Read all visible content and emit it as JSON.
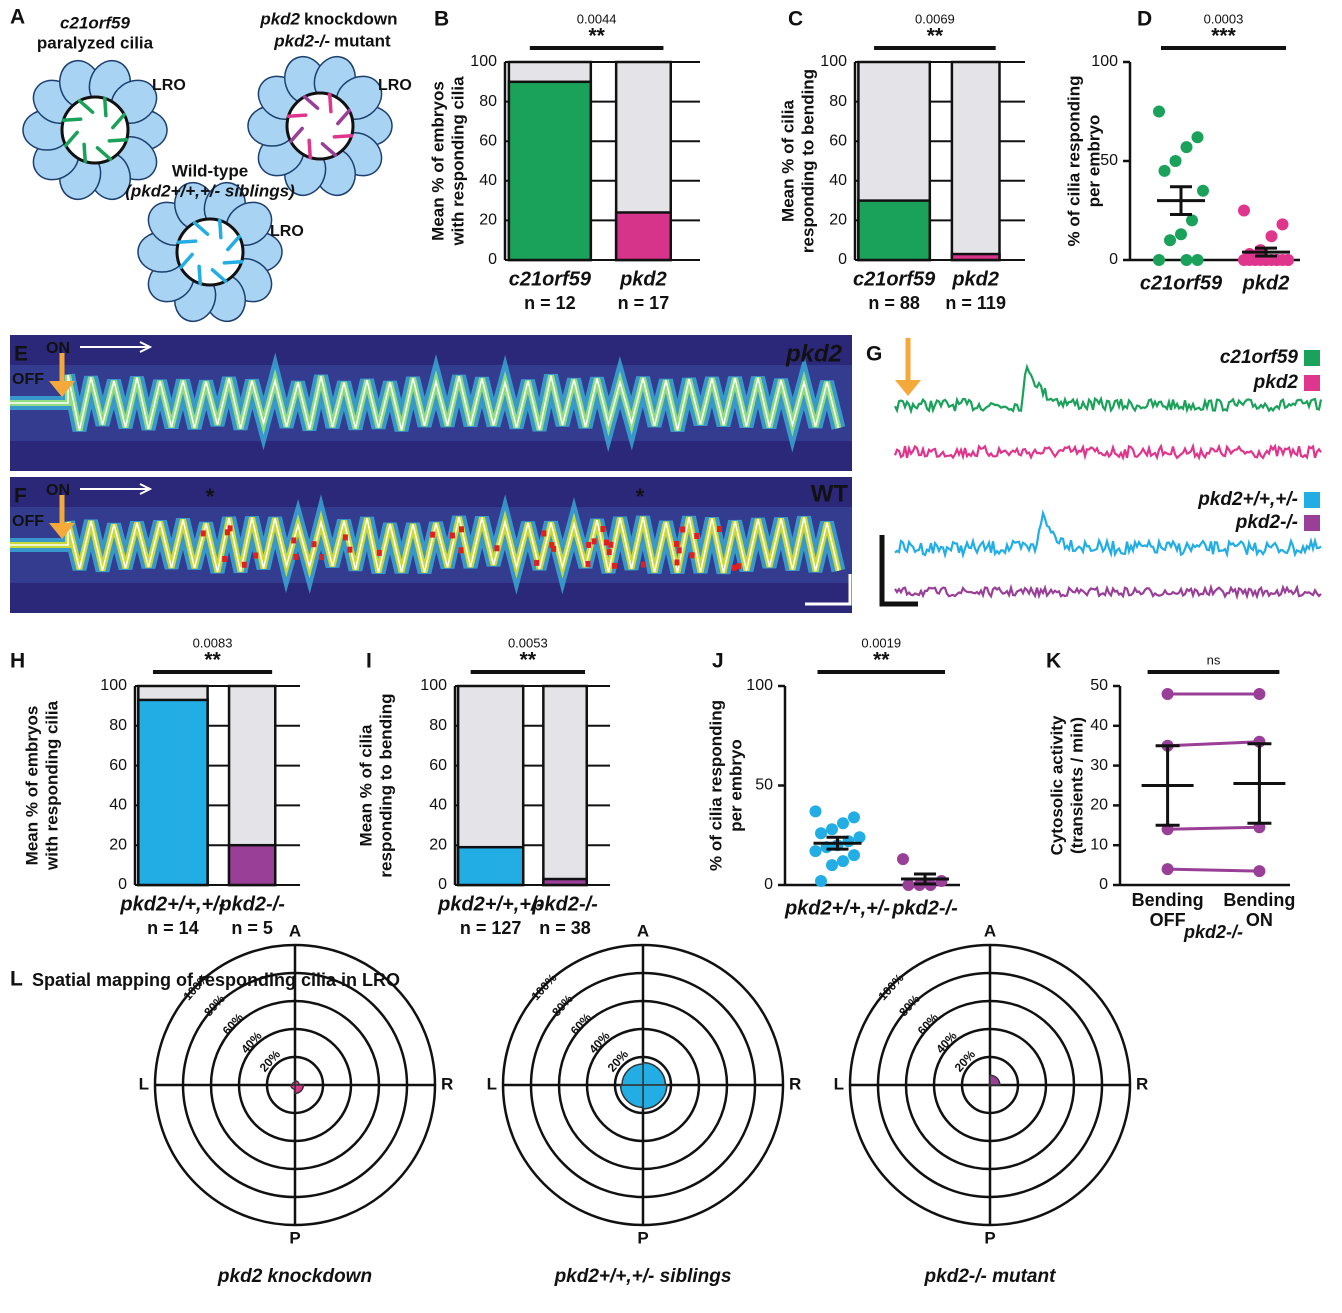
{
  "panel_a": {
    "label": "A",
    "c21_name": "c21orf59",
    "c21_desc": "paralyzed cilia",
    "kd_name": "pkd2",
    "kd_desc": "knockdown",
    "mut_name": "pkd2-/-",
    "mut_desc": "mutant",
    "wt_title": "Wild-type",
    "wt_desc": "(pkd2+/+,+/- siblings)",
    "lro": "LRO"
  },
  "panel_e": {
    "label": "E",
    "on": "ON",
    "off": "OFF",
    "tag": "pkd2"
  },
  "panel_f": {
    "label": "F",
    "on": "ON",
    "off": "OFF",
    "tag": "WT",
    "marker": "*"
  },
  "panel_g": {
    "label": "G",
    "legend": [
      {
        "name": "c21orf59",
        "color": "#1aa15a"
      },
      {
        "name": "pkd2",
        "color": "#e0358c"
      },
      {
        "name": "pkd2+/+,+/-",
        "color": "#22aee5"
      },
      {
        "name": "pkd2-/-",
        "color": "#9a3f98"
      }
    ]
  },
  "panel_l": {
    "label": "L",
    "title": "Spatial mapping of responding cilia in LRO"
  },
  "chart_data": [
    {
      "panel": "B",
      "type": "bar",
      "ylabel": [
        "Mean % of embryos",
        "with responding cilia"
      ],
      "categories": [
        "c21orf59",
        "pkd2"
      ],
      "values": [
        90,
        24
      ],
      "colors": [
        "#1aa15a",
        "#d6338a"
      ],
      "background": "#e4e4e8",
      "n_labels": [
        "n = 12",
        "n = 17"
      ],
      "ylim": [
        0,
        100
      ],
      "yticks": [
        0,
        20,
        40,
        60,
        80,
        100
      ],
      "p_value": "0.0044",
      "significance": "**"
    },
    {
      "panel": "C",
      "type": "bar",
      "ylabel": [
        "Mean % of cilia",
        "responding to bending"
      ],
      "categories": [
        "c21orf59",
        "pkd2"
      ],
      "values": [
        30,
        3
      ],
      "colors": [
        "#1aa15a",
        "#d6338a"
      ],
      "background": "#e4e4e8",
      "n_labels": [
        "n = 88",
        "n = 119"
      ],
      "ylim": [
        0,
        100
      ],
      "yticks": [
        0,
        20,
        40,
        60,
        80,
        100
      ],
      "p_value": "0.0069",
      "significance": "**"
    },
    {
      "panel": "D",
      "type": "dot",
      "ylabel": [
        "% of cilia responding",
        "per embryo"
      ],
      "categories": [
        "c21orf59",
        "pkd2"
      ],
      "colors": [
        "#1aa15a",
        "#e0358c"
      ],
      "points": [
        [
          75,
          62,
          57,
          50,
          45,
          35,
          20,
          13,
          10,
          0,
          0,
          0
        ],
        [
          25,
          18,
          12,
          5,
          3,
          0,
          0,
          0,
          0,
          0,
          0,
          0,
          0,
          0,
          0,
          0,
          0
        ]
      ],
      "mean": [
        30,
        4
      ],
      "sem": [
        7,
        2
      ],
      "ylim": [
        0,
        100
      ],
      "yticks": [
        0,
        50,
        100
      ],
      "p_value": "0.0003",
      "significance": "***"
    },
    {
      "panel": "H",
      "type": "bar",
      "ylabel": [
        "Mean % of embryos",
        "with responding cilia"
      ],
      "categories": [
        "pkd2+/+,+/-",
        "pkd2-/-"
      ],
      "values": [
        93,
        20
      ],
      "colors": [
        "#22aee5",
        "#9a3f98"
      ],
      "background": "#e4e4e8",
      "n_labels": [
        "n = 14",
        "n = 5"
      ],
      "ylim": [
        0,
        100
      ],
      "yticks": [
        0,
        20,
        40,
        60,
        80,
        100
      ],
      "p_value": "0.0083",
      "significance": "**"
    },
    {
      "panel": "I",
      "type": "bar",
      "ylabel": [
        "Mean % of cilia",
        "responding to bending"
      ],
      "categories": [
        "pkd2+/+,+/-",
        "pkd2-/-"
      ],
      "values": [
        19,
        3
      ],
      "colors": [
        "#22aee5",
        "#9a3f98"
      ],
      "background": "#e4e4e8",
      "n_labels": [
        "n = 127",
        "n = 38"
      ],
      "ylim": [
        0,
        100
      ],
      "yticks": [
        0,
        20,
        40,
        60,
        80,
        100
      ],
      "p_value": "0.0053",
      "significance": "**"
    },
    {
      "panel": "J",
      "type": "dot",
      "ylabel": [
        "% of cilia responding",
        "per embryo"
      ],
      "categories": [
        "pkd2+/+,+/-",
        "pkd2-/-"
      ],
      "colors": [
        "#22aee5",
        "#9a3f98"
      ],
      "points": [
        [
          37,
          34,
          31,
          28,
          26,
          24,
          22,
          20,
          19,
          17,
          15,
          12,
          10,
          2
        ],
        [
          13,
          2,
          0,
          0,
          0
        ]
      ],
      "mean": [
        21,
        3
      ],
      "sem": [
        3,
        2.5
      ],
      "ylim": [
        0,
        100
      ],
      "yticks": [
        0,
        50,
        100
      ],
      "p_value": "0.0019",
      "significance": "**"
    },
    {
      "panel": "K",
      "type": "paired",
      "ylabel": [
        "Cytosolic activity",
        "(transients / min)"
      ],
      "categories": [
        [
          "Bending",
          "OFF"
        ],
        [
          "Bending",
          "ON"
        ]
      ],
      "xlabel": "pkd2-/-",
      "color": "#9a3f98",
      "pairs": [
        [
          48,
          48
        ],
        [
          35,
          36
        ],
        [
          14,
          14.5
        ],
        [
          4,
          3.5
        ]
      ],
      "mean": [
        25,
        25.5
      ],
      "error": [
        10,
        10
      ],
      "ylim": [
        0,
        50
      ],
      "yticks": [
        0,
        10,
        20,
        30,
        40,
        50
      ],
      "significance": "ns"
    },
    {
      "type": "polar",
      "title": "pkd2 knockdown",
      "color": "#e0358c",
      "direction_labels": [
        "A",
        "R",
        "P",
        "L"
      ],
      "values": [
        3,
        6,
        3,
        2
      ],
      "rlim": [
        0,
        100
      ],
      "rticks": [
        {
          "value": 20,
          "label": "20%"
        },
        {
          "value": 40,
          "label": "40%"
        },
        {
          "value": 60,
          "label": "60%"
        },
        {
          "value": 80,
          "label": "80%"
        },
        {
          "value": 100,
          "label": "100%"
        }
      ]
    },
    {
      "type": "polar",
      "title": "pkd2+/+,+/- siblings",
      "color": "#22aee5",
      "direction_labels": [
        "A",
        "R",
        "P",
        "L"
      ],
      "values": [
        16,
        17,
        16,
        15
      ],
      "rlim": [
        0,
        100
      ],
      "rticks": [
        {
          "value": 20,
          "label": "20%"
        },
        {
          "value": 40,
          "label": "40%"
        },
        {
          "value": 60,
          "label": "60%"
        },
        {
          "value": 80,
          "label": "80%"
        },
        {
          "value": 100,
          "label": "100%"
        }
      ]
    },
    {
      "type": "polar",
      "title": "pkd2-/- mutant",
      "color": "#9a3f98",
      "direction_labels": [
        "A",
        "R",
        "P",
        "L"
      ],
      "values": [
        7,
        1,
        1,
        1
      ],
      "rlim": [
        0,
        100
      ],
      "rticks": [
        {
          "value": 20,
          "label": "20%"
        },
        {
          "value": 40,
          "label": "40%"
        },
        {
          "value": 60,
          "label": "60%"
        },
        {
          "value": 80,
          "label": "80%"
        },
        {
          "value": 100,
          "label": "100%"
        }
      ]
    }
  ]
}
